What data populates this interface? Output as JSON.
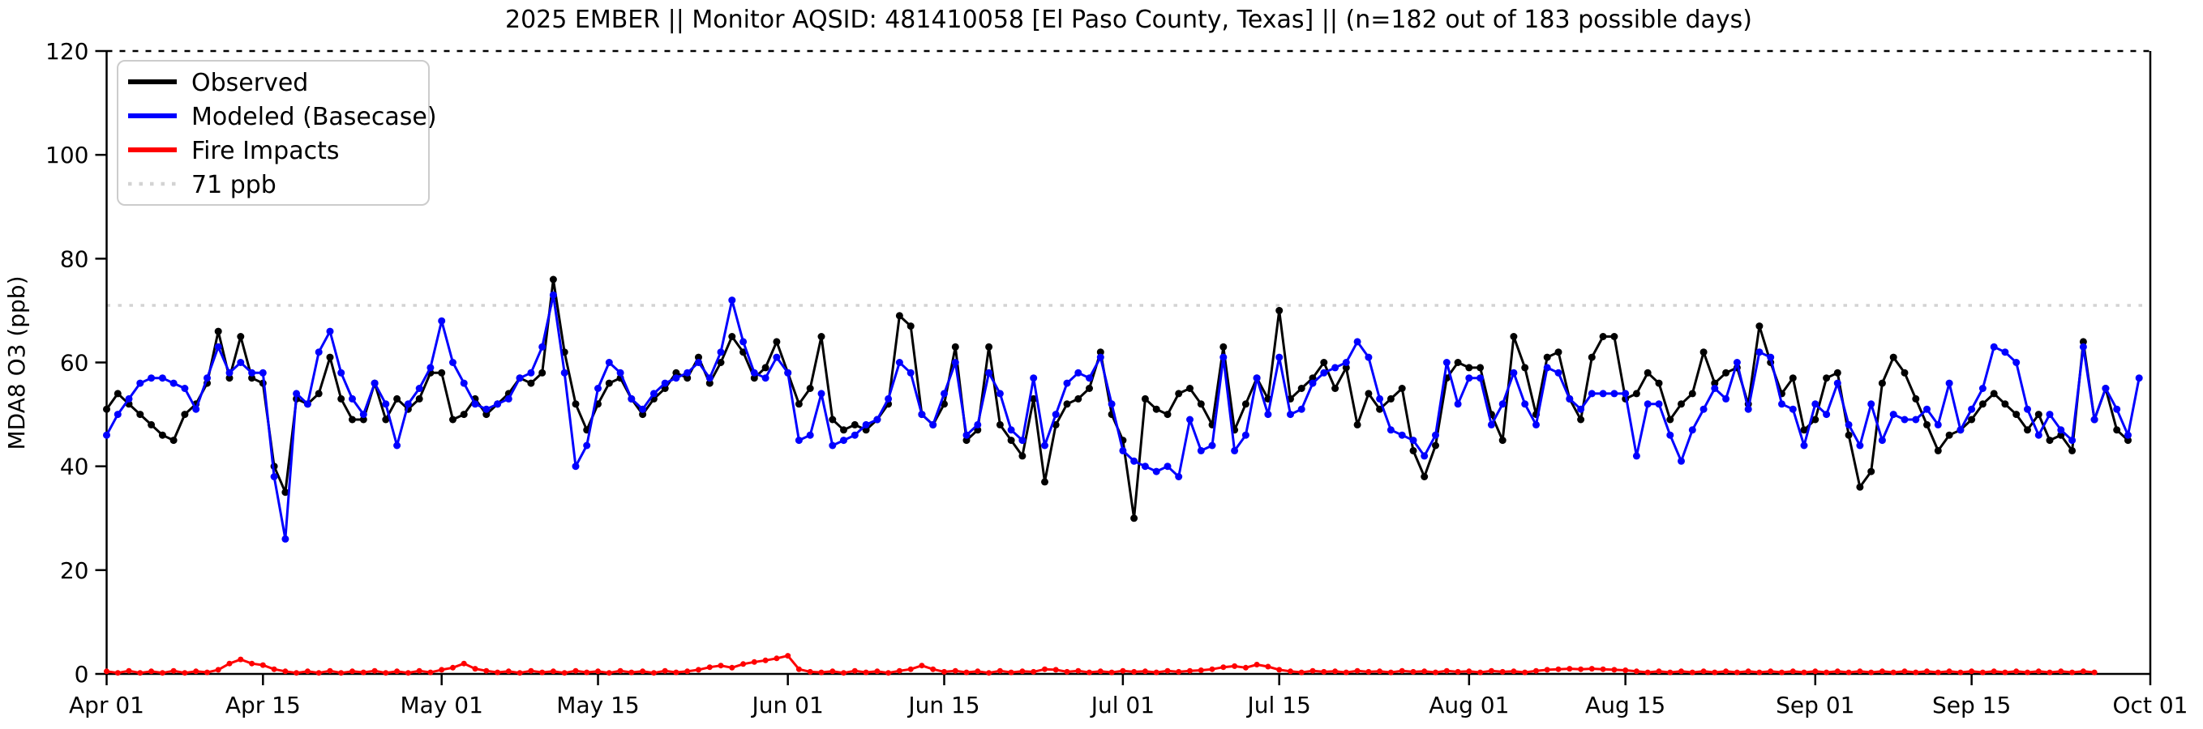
{
  "chart_data": {
    "type": "line",
    "title": "2025 EMBER || Monitor AQSID: 481410058 [El Paso County, Texas] || (n=182 out of 183 possible days)",
    "xlabel": "",
    "ylabel": "MDA8 O3 (ppb)",
    "ylim": [
      0,
      120
    ],
    "yticks": [
      0,
      20,
      40,
      60,
      80,
      100,
      120
    ],
    "grid": false,
    "legend_position": "upper-left",
    "n_days": 183,
    "start_label": "Apr 01",
    "end_label": "Oct 01",
    "x_ticks": [
      {
        "label": "Apr 01",
        "day": 0
      },
      {
        "label": "Apr 15",
        "day": 14
      },
      {
        "label": "May 01",
        "day": 30
      },
      {
        "label": "May 15",
        "day": 44
      },
      {
        "label": "Jun 01",
        "day": 61
      },
      {
        "label": "Jun 15",
        "day": 75
      },
      {
        "label": "Jul 01",
        "day": 91
      },
      {
        "label": "Jul 15",
        "day": 105
      },
      {
        "label": "Aug 01",
        "day": 122
      },
      {
        "label": "Aug 15",
        "day": 136
      },
      {
        "label": "Sep 01",
        "day": 153
      },
      {
        "label": "Sep 15",
        "day": 167
      },
      {
        "label": "Oct 01",
        "day": 183
      }
    ],
    "threshold": {
      "value": 71,
      "label": "71 ppb",
      "color": "#d3d3d3",
      "style": "dotted"
    },
    "series": [
      {
        "name": "Observed",
        "color": "#000000",
        "values": [
          51,
          54,
          52,
          50,
          48,
          46,
          45,
          50,
          52,
          56,
          66,
          57,
          65,
          57,
          56,
          40,
          35,
          53,
          52,
          54,
          61,
          53,
          49,
          49,
          56,
          49,
          53,
          51,
          53,
          58,
          58,
          49,
          50,
          53,
          50,
          52,
          54,
          57,
          56,
          58,
          76,
          62,
          52,
          47,
          52,
          56,
          57,
          53,
          50,
          53,
          55,
          58,
          57,
          61,
          56,
          60,
          65,
          62,
          57,
          59,
          64,
          58,
          52,
          55,
          65,
          49,
          47,
          48,
          47,
          49,
          52,
          69,
          67,
          50,
          48,
          52,
          63,
          45,
          47,
          63,
          48,
          45,
          42,
          53,
          37,
          48,
          52,
          53,
          55,
          62,
          50,
          45,
          30,
          53,
          51,
          50,
          54,
          55,
          52,
          48,
          63,
          47,
          52,
          57,
          53,
          70,
          53,
          55,
          57,
          60,
          55,
          59,
          48,
          54,
          51,
          53,
          55,
          43,
          38,
          44,
          57,
          60,
          59,
          59,
          50,
          45,
          65,
          59,
          50,
          61,
          62,
          53,
          49,
          61,
          65,
          65,
          53,
          54,
          58,
          56,
          49,
          52,
          54,
          62,
          56,
          58,
          59,
          52,
          67,
          60,
          54,
          57,
          47,
          49,
          57,
          58,
          46,
          36,
          39,
          56,
          61,
          58,
          53,
          48,
          43,
          46,
          47,
          49,
          52,
          54,
          52,
          50,
          47,
          50,
          45,
          46,
          43,
          64,
          49,
          55,
          47,
          45,
          null
        ]
      },
      {
        "name": "Modeled (Basecase)",
        "color": "#0000ff",
        "values": [
          46,
          50,
          53,
          56,
          57,
          57,
          56,
          55,
          51,
          57,
          63,
          58,
          60,
          58,
          58,
          38,
          26,
          54,
          52,
          62,
          66,
          58,
          53,
          50,
          56,
          52,
          44,
          52,
          55,
          59,
          68,
          60,
          56,
          52,
          51,
          52,
          53,
          57,
          58,
          63,
          73,
          58,
          40,
          44,
          55,
          60,
          58,
          53,
          51,
          54,
          56,
          57,
          58,
          60,
          57,
          62,
          72,
          64,
          58,
          57,
          61,
          58,
          45,
          46,
          54,
          44,
          45,
          46,
          48,
          49,
          53,
          60,
          58,
          50,
          48,
          54,
          60,
          46,
          48,
          58,
          54,
          47,
          45,
          57,
          44,
          50,
          56,
          58,
          57,
          61,
          52,
          43,
          41,
          40,
          39,
          40,
          38,
          49,
          43,
          44,
          61,
          43,
          46,
          57,
          50,
          61,
          50,
          51,
          56,
          58,
          59,
          60,
          64,
          61,
          53,
          47,
          46,
          45,
          42,
          46,
          60,
          52,
          57,
          57,
          48,
          52,
          58,
          52,
          48,
          59,
          58,
          53,
          51,
          54,
          54,
          54,
          54,
          42,
          52,
          52,
          46,
          41,
          47,
          51,
          55,
          53,
          60,
          51,
          62,
          61,
          52,
          51,
          44,
          52,
          50,
          56,
          48,
          44,
          52,
          45,
          50,
          49,
          49,
          51,
          48,
          56,
          47,
          51,
          55,
          63,
          62,
          60,
          51,
          46,
          50,
          47,
          45,
          63,
          49,
          55,
          51,
          46,
          57
        ]
      },
      {
        "name": "Fire Impacts",
        "color": "#ff0000",
        "values": [
          0.5,
          0.2,
          0.6,
          0.2,
          0.5,
          0.2,
          0.6,
          0.2,
          0.5,
          0.3,
          0.8,
          2.0,
          2.8,
          2.0,
          1.7,
          0.9,
          0.5,
          0.2,
          0.5,
          0.2,
          0.6,
          0.2,
          0.5,
          0.3,
          0.6,
          0.2,
          0.5,
          0.2,
          0.6,
          0.3,
          0.8,
          1.2,
          2.0,
          1.0,
          0.6,
          0.3,
          0.5,
          0.2,
          0.6,
          0.3,
          0.5,
          0.2,
          0.6,
          0.3,
          0.5,
          0.2,
          0.6,
          0.3,
          0.5,
          0.2,
          0.6,
          0.3,
          0.5,
          0.8,
          1.3,
          1.6,
          1.2,
          1.9,
          2.3,
          2.6,
          3.0,
          3.5,
          0.9,
          0.4,
          0.3,
          0.5,
          0.2,
          0.6,
          0.3,
          0.5,
          0.2,
          0.6,
          0.9,
          1.6,
          0.9,
          0.4,
          0.6,
          0.3,
          0.5,
          0.2,
          0.6,
          0.3,
          0.5,
          0.4,
          0.9,
          0.8,
          0.4,
          0.6,
          0.3,
          0.5,
          0.3,
          0.6,
          0.4,
          0.5,
          0.3,
          0.6,
          0.4,
          0.6,
          0.7,
          0.9,
          1.3,
          1.5,
          1.2,
          1.8,
          1.4,
          0.8,
          0.5,
          0.3,
          0.6,
          0.4,
          0.5,
          0.3,
          0.6,
          0.4,
          0.5,
          0.3,
          0.6,
          0.4,
          0.5,
          0.3,
          0.6,
          0.4,
          0.5,
          0.3,
          0.6,
          0.4,
          0.5,
          0.3,
          0.6,
          0.8,
          0.9,
          1.0,
          0.9,
          1.0,
          0.9,
          0.8,
          0.7,
          0.5,
          0.3,
          0.5,
          0.3,
          0.5,
          0.3,
          0.5,
          0.3,
          0.5,
          0.3,
          0.5,
          0.3,
          0.5,
          0.3,
          0.5,
          0.3,
          0.5,
          0.3,
          0.5,
          0.3,
          0.5,
          0.3,
          0.5,
          0.3,
          0.5,
          0.3,
          0.5,
          0.3,
          0.5,
          0.3,
          0.5,
          0.3,
          0.5,
          0.3,
          0.5,
          0.3,
          0.5,
          0.3,
          0.5,
          0.3,
          0.5,
          0.3
        ]
      }
    ]
  }
}
